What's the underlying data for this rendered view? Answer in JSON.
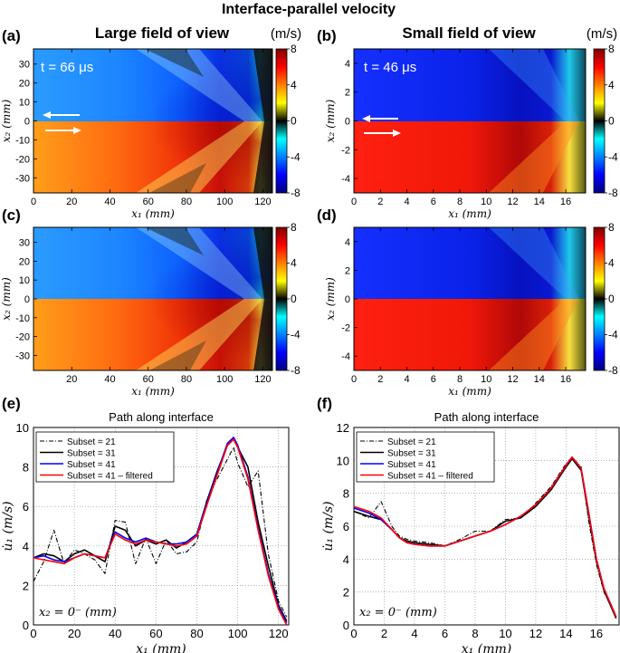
{
  "figure": {
    "main_title": "Interface-parallel velocity",
    "unit_label": "(m/s)",
    "titles": {
      "large": "Large field of view",
      "small": "Small field of view"
    }
  },
  "panels": {
    "a": {
      "label": "(a)",
      "time": "t = 66 μs"
    },
    "b": {
      "label": "(b)",
      "time": "t = 46 μs"
    },
    "c": {
      "label": "(c)"
    },
    "d": {
      "label": "(d)"
    },
    "e": {
      "label": "(e)"
    },
    "f": {
      "label": "(f)"
    }
  },
  "colorbar": {
    "ticks": [
      "8",
      "4",
      "0",
      "-4",
      "-8"
    ],
    "range": [
      -8,
      8
    ],
    "colors": [
      "#00007f",
      "#0000ff",
      "#0080ff",
      "#00ffff",
      "#000000",
      "#ffff00",
      "#ff8000",
      "#ff0000",
      "#7f0000"
    ]
  },
  "maps": {
    "x1_label": "x₁ (mm)",
    "x2_label": "x₂ (mm)",
    "large": {
      "xticks": [
        "0",
        "20",
        "40",
        "60",
        "80",
        "100",
        "120"
      ],
      "xticks_c": [
        "20",
        "40",
        "60",
        "80",
        "100",
        "120"
      ],
      "yticks": [
        "30",
        "20",
        "10",
        "0",
        "-10",
        "-20",
        "-30"
      ],
      "xrange": [
        0,
        125
      ],
      "yrange": [
        -38,
        38
      ]
    },
    "small": {
      "xticks": [
        "0",
        "2",
        "4",
        "6",
        "8",
        "10",
        "12",
        "14",
        "16"
      ],
      "yticks": [
        "4",
        "2",
        "0",
        "-2",
        "-4"
      ],
      "xrange": [
        0,
        17.5
      ],
      "yrange": [
        -5,
        5
      ]
    }
  },
  "chart_data": [
    {
      "panel": "e",
      "type": "line",
      "title": "Path along interface",
      "xlabel": "x₁ (mm)",
      "ylabel": "u̇₁ (m/s)",
      "annotation": "x₂ = 0⁻ (mm)",
      "xlim": [
        0,
        125
      ],
      "ylim": [
        0,
        10
      ],
      "xticks": [
        "0",
        "20",
        "40",
        "60",
        "80",
        "100",
        "120"
      ],
      "yticks": [
        "0",
        "2",
        "4",
        "6",
        "8",
        "10"
      ],
      "grid": true,
      "legend": "top-left",
      "x": [
        0,
        5,
        10,
        15,
        20,
        25,
        30,
        35,
        40,
        45,
        50,
        55,
        60,
        65,
        70,
        75,
        80,
        85,
        90,
        95,
        98,
        100,
        105,
        110,
        115,
        120,
        124
      ],
      "series": [
        {
          "name": "Subset = 21",
          "color": "#000000",
          "style": "dashdot",
          "values": [
            2.2,
            3.2,
            4.8,
            3.1,
            3.8,
            3.6,
            3.3,
            2.6,
            5.3,
            5.2,
            3.1,
            4.4,
            3.1,
            4.3,
            3.6,
            3.7,
            4.2,
            6.4,
            7.4,
            8.4,
            9.0,
            8.2,
            7.0,
            7.8,
            3.6,
            1.2,
            0.4
          ]
        },
        {
          "name": "Subset = 31",
          "color": "#000000",
          "style": "solid",
          "values": [
            3.4,
            3.6,
            3.5,
            3.2,
            3.6,
            3.8,
            3.5,
            3.2,
            5.0,
            4.8,
            4.0,
            4.3,
            4.1,
            4.3,
            3.9,
            4.2,
            4.6,
            6.3,
            7.8,
            9.1,
            9.4,
            9.0,
            8.0,
            5.2,
            3.0,
            1.0,
            0.2
          ]
        },
        {
          "name": "Subset = 41",
          "color": "#0000ff",
          "style": "solid",
          "values": [
            3.4,
            3.5,
            3.3,
            3.2,
            3.4,
            3.6,
            3.5,
            3.4,
            4.7,
            4.4,
            4.2,
            4.4,
            4.2,
            4.1,
            4.1,
            4.2,
            4.6,
            6.2,
            7.7,
            9.2,
            9.5,
            9.1,
            7.5,
            4.9,
            2.6,
            0.9,
            0.1
          ]
        },
        {
          "name": "Subset = 41 – filtered",
          "color": "#ff0000",
          "style": "solid",
          "values": [
            3.4,
            3.3,
            3.2,
            3.1,
            3.4,
            3.6,
            3.5,
            3.4,
            4.6,
            4.3,
            4.1,
            4.3,
            4.2,
            4.1,
            4.0,
            4.1,
            4.5,
            6.1,
            7.6,
            9.1,
            9.4,
            9.0,
            7.4,
            4.8,
            2.5,
            0.8,
            0.0
          ]
        }
      ]
    },
    {
      "panel": "f",
      "type": "line",
      "title": "Path along interface",
      "xlabel": "x₁ (mm)",
      "ylabel": "u̇₁ (m/s)",
      "annotation": "x₂ = 0⁻ (mm)",
      "xlim": [
        0,
        17.5
      ],
      "ylim": [
        0,
        12
      ],
      "xticks": [
        "0",
        "2",
        "4",
        "6",
        "8",
        "10",
        "12",
        "14",
        "16"
      ],
      "yticks": [
        "0",
        "2",
        "4",
        "6",
        "8",
        "10",
        "12"
      ],
      "grid": true,
      "legend": "top-left",
      "x": [
        0,
        1,
        1.8,
        2.5,
        3,
        3.5,
        4,
        5,
        6,
        7,
        8,
        9,
        10,
        11,
        12,
        13,
        14,
        14.4,
        15,
        15.5,
        16,
        16.5,
        17.3
      ],
      "series": [
        {
          "name": "Subset = 21",
          "color": "#000000",
          "style": "dashdot",
          "values": [
            6.9,
            6.5,
            7.5,
            6.0,
            5.4,
            5.2,
            5.1,
            5.0,
            4.8,
            5.2,
            5.7,
            5.7,
            6.4,
            6.5,
            7.4,
            8.4,
            9.8,
            10.2,
            9.6,
            6.3,
            3.7,
            2.0,
            0.5
          ]
        },
        {
          "name": "Subset = 31",
          "color": "#000000",
          "style": "solid",
          "values": [
            6.9,
            6.6,
            6.4,
            5.8,
            5.3,
            5.1,
            5.0,
            4.9,
            4.8,
            5.1,
            5.4,
            5.7,
            6.3,
            6.5,
            7.2,
            8.2,
            9.6,
            10.1,
            9.4,
            6.6,
            3.9,
            2.1,
            0.4
          ]
        },
        {
          "name": "Subset = 41",
          "color": "#0000ff",
          "style": "solid",
          "values": [
            7.1,
            6.8,
            6.4,
            5.8,
            5.3,
            5.0,
            4.9,
            4.8,
            4.8,
            5.1,
            5.4,
            5.7,
            6.1,
            6.6,
            7.3,
            8.3,
            9.7,
            10.2,
            9.5,
            6.8,
            4.0,
            2.2,
            0.5
          ]
        },
        {
          "name": "Subset = 41 – filtered",
          "color": "#ff0000",
          "style": "solid",
          "values": [
            7.2,
            6.9,
            6.5,
            5.8,
            5.3,
            5.0,
            4.9,
            4.8,
            4.8,
            5.1,
            5.4,
            5.7,
            6.1,
            6.6,
            7.3,
            8.3,
            9.7,
            10.2,
            9.5,
            6.8,
            4.0,
            2.2,
            0.5
          ]
        }
      ]
    }
  ]
}
